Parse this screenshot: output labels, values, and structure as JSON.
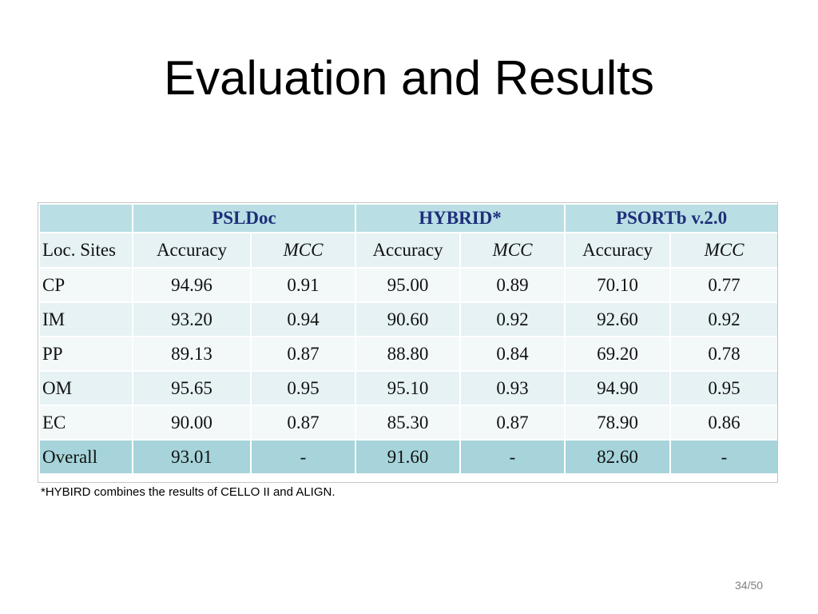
{
  "slide": {
    "title": "Evaluation and Results",
    "footnote": "*HYBIRD combines the results of CELLO II and ALIGN.",
    "page_number": "34/50"
  },
  "table": {
    "groups": [
      {
        "label": "PSLDoc"
      },
      {
        "label": "HYBRID*"
      },
      {
        "label": "PSORTb v.2.0"
      }
    ],
    "site_header": "Loc. Sites",
    "metric_headers": [
      "Accuracy",
      "MCC",
      "Accuracy",
      "MCC",
      "Accuracy",
      "MCC"
    ],
    "rows": [
      {
        "site": "CP",
        "values": [
          "94.96",
          "0.91",
          "95.00",
          "0.89",
          "70.10",
          "0.77"
        ]
      },
      {
        "site": "IM",
        "values": [
          "93.20",
          "0.94",
          "90.60",
          "0.92",
          "92.60",
          "0.92"
        ]
      },
      {
        "site": "PP",
        "values": [
          "89.13",
          "0.87",
          "88.80",
          "0.84",
          "69.20",
          "0.78"
        ]
      },
      {
        "site": "OM",
        "values": [
          "95.65",
          "0.95",
          "95.10",
          "0.93",
          "94.90",
          "0.95"
        ]
      },
      {
        "site": "EC",
        "values": [
          "90.00",
          "0.87",
          "85.30",
          "0.87",
          "78.90",
          "0.86"
        ]
      }
    ],
    "overall": {
      "site": "Overall",
      "values": [
        "93.01",
        "-",
        "91.60",
        "-",
        "82.60",
        "-"
      ]
    }
  },
  "colors": {
    "group_header_bg": "#b9dfe4",
    "group_header_text": "#1f2f7a",
    "light_row_bg": "#f3f8f9",
    "mid_row_bg": "#e6f2f4",
    "overall_row_bg": "#a6d4da"
  }
}
